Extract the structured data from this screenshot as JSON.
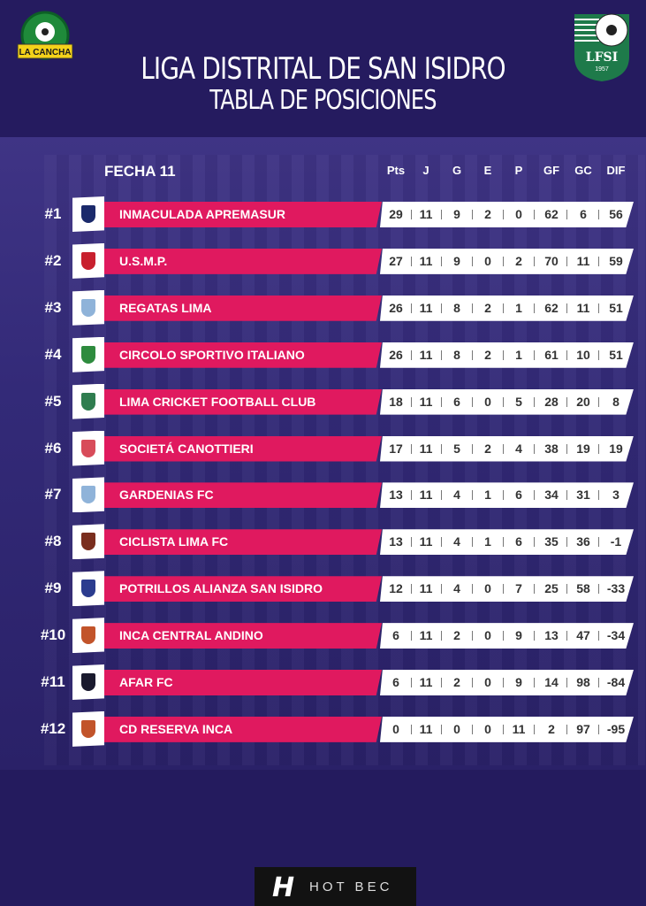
{
  "header": {
    "title": "LIGA DISTRITAL DE SAN ISIDRO",
    "subtitle": "TABLA DE POSICIONES",
    "logo_left_text": "LA CANCHA",
    "logo_right_text": "LFSI",
    "logo_right_year": "1957"
  },
  "table": {
    "round": "FECHA 11",
    "columns": [
      "Pts",
      "J",
      "G",
      "E",
      "P",
      "GF",
      "GC",
      "DIF"
    ],
    "rows": [
      {
        "rank": "#1",
        "team": "INMACULADA APREMASUR",
        "crest": "#1b2a6b",
        "stats": [
          "29",
          "11",
          "9",
          "2",
          "0",
          "62",
          "6",
          "56"
        ]
      },
      {
        "rank": "#2",
        "team": "U.S.M.P.",
        "crest": "#c8202e",
        "stats": [
          "27",
          "11",
          "9",
          "0",
          "2",
          "70",
          "11",
          "59"
        ]
      },
      {
        "rank": "#3",
        "team": "REGATAS LIMA",
        "crest": "#8fb3d9",
        "stats": [
          "26",
          "11",
          "8",
          "2",
          "1",
          "62",
          "11",
          "51"
        ]
      },
      {
        "rank": "#4",
        "team": "CIRCOLO SPORTIVO ITALIANO",
        "crest": "#2e8b3e",
        "stats": [
          "26",
          "11",
          "8",
          "2",
          "1",
          "61",
          "10",
          "51"
        ]
      },
      {
        "rank": "#5",
        "team": "LIMA CRICKET FOOTBALL CLUB",
        "crest": "#2f7d4f",
        "stats": [
          "18",
          "11",
          "6",
          "0",
          "5",
          "28",
          "20",
          "8"
        ]
      },
      {
        "rank": "#6",
        "team": "SOCIETÁ CANOTTIERI",
        "crest": "#d84c5a",
        "stats": [
          "17",
          "11",
          "5",
          "2",
          "4",
          "38",
          "19",
          "19"
        ]
      },
      {
        "rank": "#7",
        "team": "GARDENIAS FC",
        "crest": "#8fb3d9",
        "stats": [
          "13",
          "11",
          "4",
          "1",
          "6",
          "34",
          "31",
          "3"
        ]
      },
      {
        "rank": "#8",
        "team": "CICLISTA LIMA FC",
        "crest": "#7a2e1e",
        "stats": [
          "13",
          "11",
          "4",
          "1",
          "6",
          "35",
          "36",
          "-1"
        ]
      },
      {
        "rank": "#9",
        "team": "POTRILLOS ALIANZA SAN ISIDRO",
        "crest": "#2b3c8f",
        "stats": [
          "12",
          "11",
          "4",
          "0",
          "7",
          "25",
          "58",
          "-33"
        ]
      },
      {
        "rank": "#10",
        "team": "INCA CENTRAL ANDINO",
        "crest": "#c2542a",
        "stats": [
          "6",
          "11",
          "2",
          "0",
          "9",
          "13",
          "47",
          "-34"
        ]
      },
      {
        "rank": "#11",
        "team": "AFAR FC",
        "crest": "#1a1a2e",
        "stats": [
          "6",
          "11",
          "2",
          "0",
          "9",
          "14",
          "98",
          "-84"
        ]
      },
      {
        "rank": "#12",
        "team": "CD RESERVA INCA",
        "crest": "#c2542a",
        "stats": [
          "0",
          "11",
          "0",
          "0",
          "11",
          "2",
          "97",
          "-95"
        ]
      }
    ]
  },
  "footer": {
    "brand_mark": "H",
    "brand_text": "HOT BEC"
  },
  "colors": {
    "background": "#241b5e",
    "accent": "#e0195f",
    "row": "#ffffff"
  }
}
